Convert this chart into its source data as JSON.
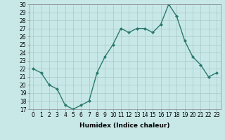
{
  "x": [
    0,
    1,
    2,
    3,
    4,
    5,
    6,
    7,
    8,
    9,
    10,
    11,
    12,
    13,
    14,
    15,
    16,
    17,
    18,
    19,
    20,
    21,
    22,
    23
  ],
  "y": [
    22,
    21.5,
    20,
    19.5,
    17.5,
    17,
    17.5,
    18,
    21.5,
    23.5,
    25,
    27,
    26.5,
    27,
    27,
    26.5,
    27.5,
    30,
    28.5,
    25.5,
    23.5,
    22.5,
    21,
    21.5
  ],
  "line_color": "#2a7a6e",
  "marker": "D",
  "marker_size": 2,
  "bg_color": "#c8e8e8",
  "grid_color": "#a8c8c8",
  "xlabel": "Humidex (Indice chaleur)",
  "xlim": [
    -0.5,
    23.5
  ],
  "ylim": [
    17,
    30
  ],
  "yticks": [
    17,
    18,
    19,
    20,
    21,
    22,
    23,
    24,
    25,
    26,
    27,
    28,
    29,
    30
  ],
  "xticks": [
    0,
    1,
    2,
    3,
    4,
    5,
    6,
    7,
    8,
    9,
    10,
    11,
    12,
    13,
    14,
    15,
    16,
    17,
    18,
    19,
    20,
    21,
    22,
    23
  ],
  "tick_fontsize": 5.5,
  "label_fontsize": 6.5,
  "linewidth": 1.0
}
